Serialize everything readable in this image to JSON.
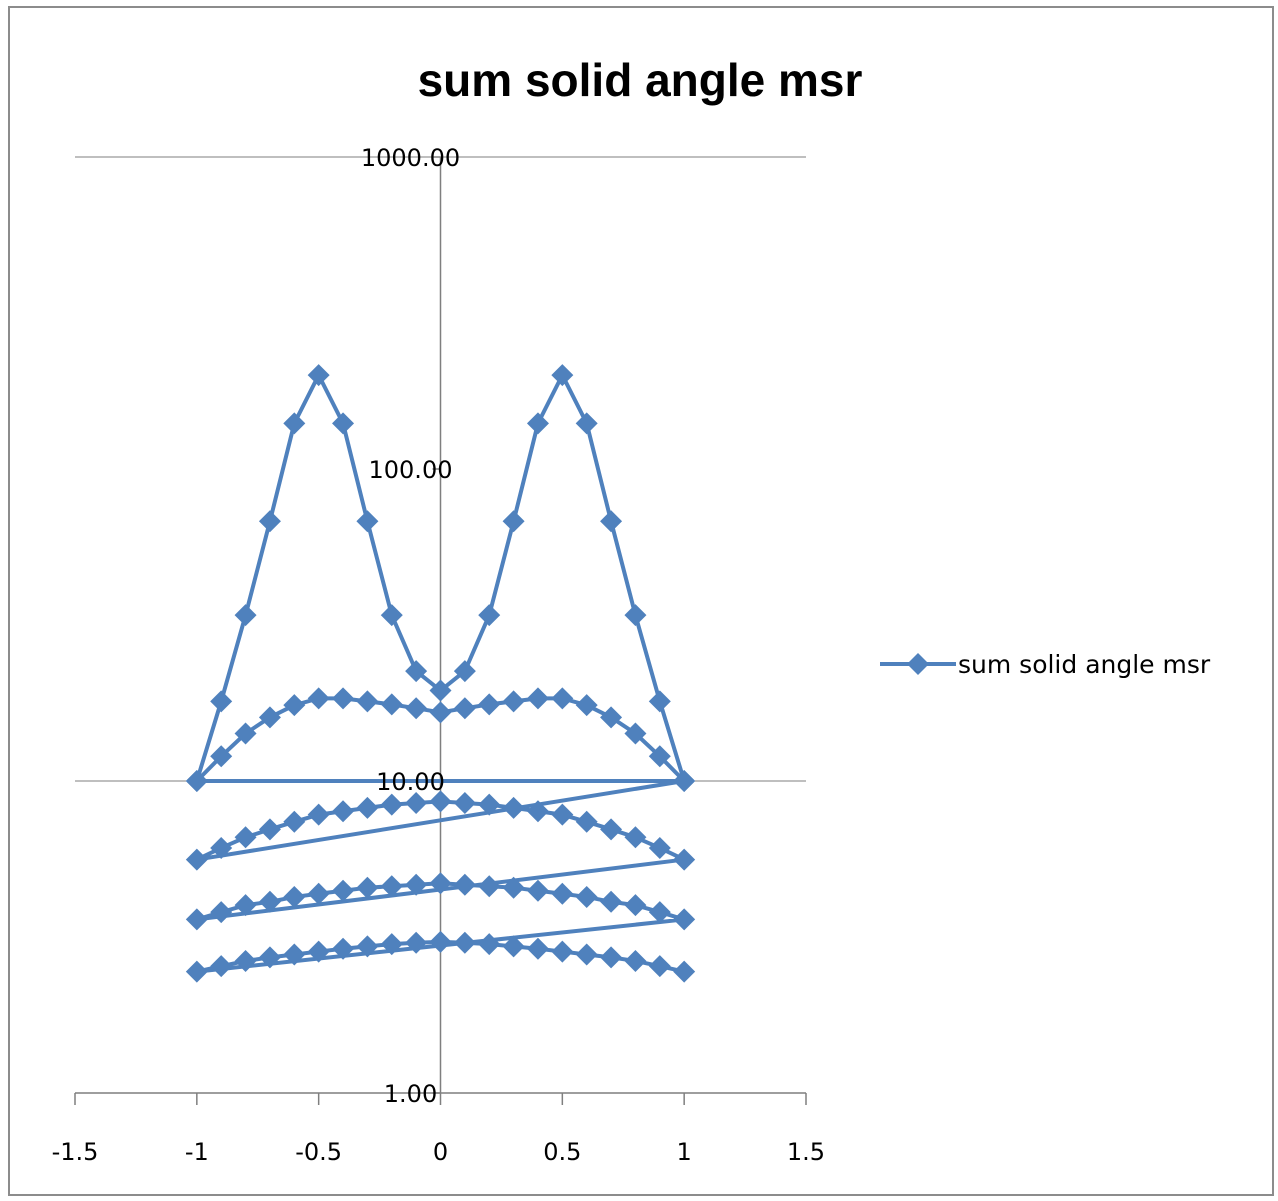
{
  "chart_data": {
    "type": "scatter",
    "title": "sum solid angle msr",
    "xlabel": "",
    "ylabel": "",
    "xlim": [
      -1.5,
      1.5
    ],
    "ylim": [
      1,
      1000
    ],
    "y_scale": "log",
    "x_ticks": [
      "-1.5",
      "-1",
      "-0.5",
      "0",
      "0.5",
      "1",
      "1.5"
    ],
    "y_ticks": [
      "1.00",
      "10.00",
      "100.00",
      "1000.00"
    ],
    "grid": "major gridlines at y = 10 and y = 1000, axes crossing at x = 0",
    "legend_position": "right",
    "color": "#4f81bd",
    "series": [
      {
        "name": "sum solid angle msr",
        "x": [
          -1,
          -0.9,
          -0.8,
          -0.7,
          -0.6,
          -0.5,
          -0.4,
          -0.3,
          -0.2,
          -0.1,
          0,
          0.1,
          0.2,
          0.3,
          0.4,
          0.5,
          0.6,
          0.7,
          0.8,
          0.9,
          1,
          -1,
          -0.9,
          -0.8,
          -0.7,
          -0.6,
          -0.5,
          -0.4,
          -0.3,
          -0.2,
          -0.1,
          0,
          0.1,
          0.2,
          0.3,
          0.4,
          0.5,
          0.6,
          0.7,
          0.8,
          0.9,
          1,
          -1,
          -0.9,
          -0.8,
          -0.7,
          -0.6,
          -0.5,
          -0.4,
          -0.3,
          -0.2,
          -0.1,
          0,
          0.1,
          0.2,
          0.3,
          0.4,
          0.5,
          0.6,
          0.7,
          0.8,
          0.9,
          1,
          -1,
          -0.9,
          -0.8,
          -0.7,
          -0.6,
          -0.5,
          -0.4,
          -0.3,
          -0.2,
          -0.1,
          0,
          0.1,
          0.2,
          0.3,
          0.4,
          0.5,
          0.6,
          0.7,
          0.8,
          0.9,
          1,
          -1,
          -0.9,
          -0.8,
          -0.7,
          -0.6,
          -0.5,
          -0.4,
          -0.3,
          -0.2,
          -0.1,
          0,
          0.1,
          0.2,
          0.3,
          0.4,
          0.5,
          0.6,
          0.7,
          0.8,
          0.9,
          1
        ],
        "y": [
          10.0,
          18.0,
          34.0,
          68.0,
          140.0,
          200.0,
          140.0,
          68.0,
          34.0,
          22.5,
          19.5,
          22.5,
          34.0,
          68.0,
          140.0,
          200.0,
          140.0,
          68.0,
          34.0,
          18.0,
          10.0,
          10.0,
          12.0,
          14.2,
          16.0,
          17.5,
          18.4,
          18.4,
          18.0,
          17.6,
          17.1,
          16.6,
          17.1,
          17.6,
          18.0,
          18.4,
          18.4,
          17.5,
          16.0,
          14.2,
          12.0,
          10.0,
          5.6,
          6.1,
          6.6,
          7.0,
          7.4,
          7.8,
          8.0,
          8.2,
          8.4,
          8.5,
          8.6,
          8.5,
          8.4,
          8.2,
          8.0,
          7.8,
          7.4,
          7.0,
          6.6,
          6.1,
          5.6,
          3.6,
          3.8,
          4.0,
          4.1,
          4.25,
          4.35,
          4.45,
          4.55,
          4.6,
          4.65,
          4.7,
          4.65,
          4.6,
          4.55,
          4.45,
          4.35,
          4.25,
          4.1,
          4.0,
          3.8,
          3.6,
          2.45,
          2.55,
          2.65,
          2.72,
          2.78,
          2.84,
          2.9,
          2.95,
          3.0,
          3.03,
          3.05,
          3.03,
          3.0,
          2.95,
          2.9,
          2.84,
          2.78,
          2.72,
          2.65,
          2.55,
          2.45
        ]
      }
    ]
  }
}
